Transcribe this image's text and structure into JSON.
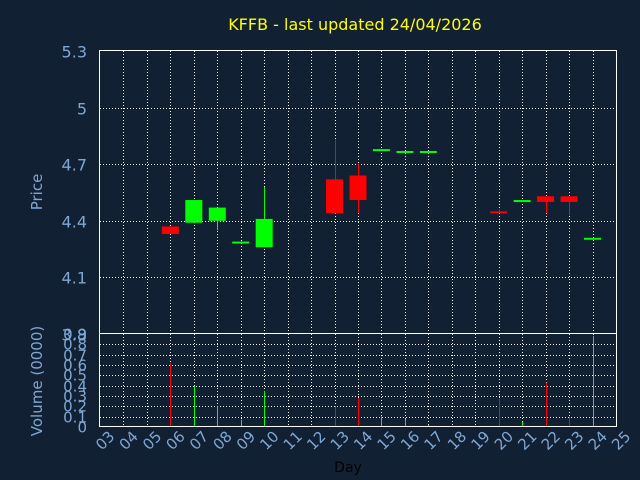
{
  "colors": {
    "background": "#112033",
    "title": "#ffff00",
    "axis_text": "#7fa7d4",
    "xlabel": "#000000",
    "frame": "#ffffff",
    "grid": "#ffffff",
    "up": "#00ff00",
    "down": "#ff0000"
  },
  "chart_data": {
    "type": "candlestick",
    "title": "KFFB - last updated 24/04/2026",
    "xlabel": "Day",
    "grid": true,
    "x_ticks": [
      "03",
      "04",
      "05",
      "06",
      "07",
      "08",
      "09",
      "10",
      "11",
      "12",
      "13",
      "14",
      "15",
      "16",
      "17",
      "18",
      "19",
      "20",
      "21",
      "22",
      "23",
      "24",
      "25"
    ],
    "price": {
      "ylabel": "Price",
      "ylim": [
        3.8,
        5.3
      ],
      "y_ticks": [
        "5.3",
        "5",
        "4.7",
        "4.4",
        "4.1",
        "3.8"
      ],
      "candles": [
        {
          "day": "06",
          "open": 4.37,
          "high": 4.37,
          "low": 4.33,
          "close": 4.33,
          "dir": "down"
        },
        {
          "day": "07",
          "open": 4.39,
          "high": 4.51,
          "low": 4.39,
          "close": 4.51,
          "dir": "up"
        },
        {
          "day": "08",
          "open": 4.4,
          "high": 4.47,
          "low": 4.35,
          "close": 4.47,
          "dir": "up"
        },
        {
          "day": "09",
          "open": 4.29,
          "high": 4.29,
          "low": 4.29,
          "close": 4.29,
          "dir": "up"
        },
        {
          "day": "10",
          "open": 4.26,
          "high": 4.58,
          "low": 4.26,
          "close": 4.41,
          "dir": "up"
        },
        {
          "day": "13",
          "open": 4.62,
          "high": 4.83,
          "low": 4.44,
          "close": 4.44,
          "dir": "down"
        },
        {
          "day": "14",
          "open": 4.64,
          "high": 4.7,
          "low": 4.44,
          "close": 4.51,
          "dir": "down"
        },
        {
          "day": "15",
          "open": 4.78,
          "high": 4.78,
          "low": 4.78,
          "close": 4.78,
          "dir": "up"
        },
        {
          "day": "16",
          "open": 4.77,
          "high": 4.77,
          "low": 4.77,
          "close": 4.77,
          "dir": "up"
        },
        {
          "day": "17",
          "open": 4.77,
          "high": 4.77,
          "low": 4.77,
          "close": 4.77,
          "dir": "up"
        },
        {
          "day": "20",
          "open": 4.45,
          "high": 4.46,
          "low": 4.44,
          "close": 4.44,
          "dir": "down"
        },
        {
          "day": "21",
          "open": 4.51,
          "high": 4.51,
          "low": 4.51,
          "close": 4.51,
          "dir": "up"
        },
        {
          "day": "22",
          "open": 4.53,
          "high": 4.53,
          "low": 4.44,
          "close": 4.5,
          "dir": "down"
        },
        {
          "day": "23",
          "open": 4.53,
          "high": 4.53,
          "low": 4.43,
          "close": 4.5,
          "dir": "down"
        },
        {
          "day": "24",
          "open": 4.31,
          "high": 4.31,
          "low": 4.31,
          "close": 4.31,
          "dir": "up"
        }
      ]
    },
    "volume": {
      "ylabel": "Volume (0000)",
      "ylim": [
        0,
        0.9
      ],
      "y_ticks": [
        "0.9",
        "0.8",
        "0.7",
        "0.6",
        "0.5",
        "0.4",
        "0.3",
        "0.2",
        "0.1",
        "0"
      ],
      "bars": [
        {
          "day": "06",
          "value": 0.62,
          "dir": "down"
        },
        {
          "day": "07",
          "value": 0.4,
          "dir": "up"
        },
        {
          "day": "08",
          "value": 0.2,
          "dir": "up"
        },
        {
          "day": "09",
          "value": 0.07,
          "dir": "up"
        },
        {
          "day": "10",
          "value": 0.35,
          "dir": "up"
        },
        {
          "day": "13",
          "value": 0.2,
          "dir": "down"
        },
        {
          "day": "14",
          "value": 0.28,
          "dir": "down"
        },
        {
          "day": "15",
          "value": 0.1,
          "dir": "up"
        },
        {
          "day": "16",
          "value": 0.08,
          "dir": "up"
        },
        {
          "day": "17",
          "value": 0.02,
          "dir": "up"
        },
        {
          "day": "20",
          "value": 0.27,
          "dir": "down"
        },
        {
          "day": "21",
          "value": 0.05,
          "dir": "up"
        },
        {
          "day": "22",
          "value": 0.43,
          "dir": "down"
        },
        {
          "day": "23",
          "value": 0.1,
          "dir": "down"
        },
        {
          "day": "24",
          "value": 0.88,
          "dir": "up"
        }
      ]
    }
  }
}
